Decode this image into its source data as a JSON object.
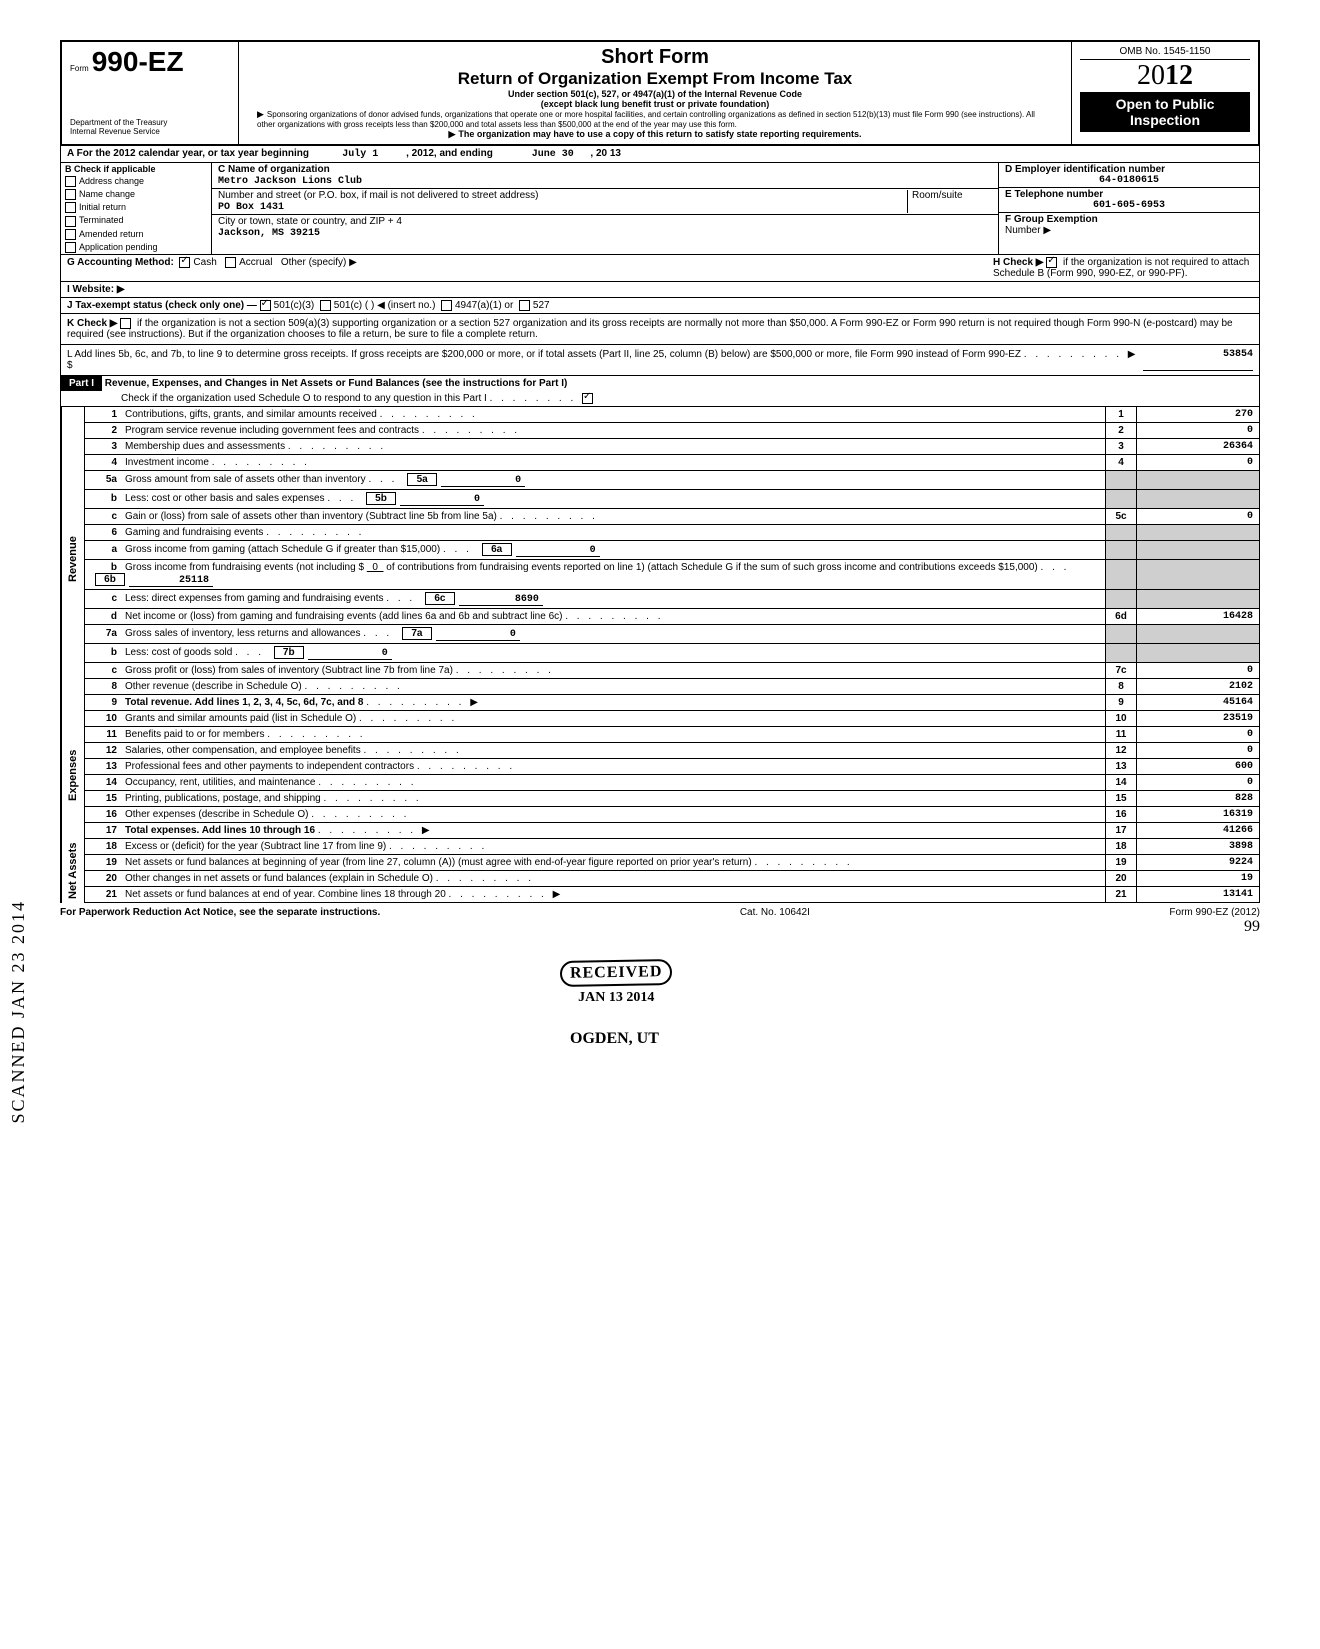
{
  "form": {
    "number_prefix": "Form",
    "number": "990-EZ",
    "dept1": "Department of the Treasury",
    "dept2": "Internal Revenue Service",
    "title1": "Short Form",
    "title2": "Return of Organization Exempt From Income Tax",
    "sub1": "Under section 501(c), 527, or 4947(a)(1) of the Internal Revenue Code",
    "sub2": "(except black lung benefit trust or private foundation)",
    "sub3": "Sponsoring organizations of donor advised funds, organizations that operate one or more hospital facilities, and certain controlling organizations as defined in section 512(b)(13) must file Form 990 (see instructions). All other organizations with gross receipts less than $200,000 and total assets less than $500,000 at the end of the year may use this form.",
    "sub4": "The organization may have to use a copy of this return to satisfy state reporting requirements.",
    "omb": "OMB No. 1545-1150",
    "year_prefix": "20",
    "year_bold": "12",
    "open1": "Open to Public",
    "open2": "Inspection"
  },
  "rowA": {
    "label": "A For the 2012 calendar year, or tax year beginning",
    "begin": "July 1",
    "mid": ", 2012, and ending",
    "end": "June 30",
    "tail": ", 20   13"
  },
  "sectionB": {
    "header": "B Check if applicable",
    "opts": [
      "Address change",
      "Name change",
      "Initial return",
      "Terminated",
      "Amended return",
      "Application pending"
    ],
    "c_label": "C  Name of organization",
    "org_name": "Metro Jackson Lions Club",
    "street_label": "Number and street (or P.O. box, if mail is not delivered to street address)",
    "room_label": "Room/suite",
    "street": "PO Box 1431",
    "city_label": "City or town, state or country, and ZIP + 4",
    "city": "Jackson, MS  39215",
    "d_label": "D Employer identification number",
    "ein": "64-0180615",
    "e_label": "E Telephone number",
    "phone": "601-605-6953",
    "f_label": "F Group Exemption",
    "f_label2": "Number ▶"
  },
  "rowG": {
    "label": "G  Accounting Method:",
    "cash": "Cash",
    "accrual": "Accrual",
    "other": "Other (specify) ▶",
    "h_label": "H Check ▶",
    "h_text": "if the organization is not required to attach Schedule B (Form 990, 990-EZ, or 990-PF)."
  },
  "rowI": {
    "label": "I   Website: ▶"
  },
  "rowJ": {
    "label": "J  Tax-exempt status (check only one) —",
    "o1": "501(c)(3)",
    "o2": "501(c) (        ) ◀ (insert no.)",
    "o3": "4947(a)(1) or",
    "o4": "527"
  },
  "rowK": {
    "label": "K Check ▶",
    "text": "if the organization is not a section 509(a)(3) supporting organization or a section 527 organization and its gross receipts are normally not more than $50,000. A Form 990-EZ or Form 990 return is not required though Form 990-N (e-postcard) may be required (see instructions). But if the organization chooses to file a return, be sure to file a complete return."
  },
  "rowL": {
    "text": "L  Add lines 5b, 6c, and 7b, to line 9 to determine gross receipts. If gross receipts are $200,000 or more, or if total assets (Part II, line 25, column (B) below) are $500,000 or more, file Form 990 instead of Form 990-EZ",
    "arrow": "▶  $",
    "value": "53854"
  },
  "part1": {
    "label": "Part I",
    "title": "Revenue, Expenses, and Changes in Net Assets or Fund Balances (see the instructions for Part I)",
    "check_line": "Check if the organization used Schedule O to respond to any question in this Part I"
  },
  "sides": {
    "revenue": "Revenue",
    "expenses": "Expenses",
    "netassets": "Net Assets"
  },
  "lines": {
    "l1": {
      "n": "1",
      "t": "Contributions, gifts, grants, and similar amounts received",
      "v": "270"
    },
    "l2": {
      "n": "2",
      "t": "Program service revenue including government fees and contracts",
      "v": "0"
    },
    "l3": {
      "n": "3",
      "t": "Membership dues and assessments",
      "v": "26364"
    },
    "l4": {
      "n": "4",
      "t": "Investment income",
      "v": "0"
    },
    "l5a": {
      "n": "5a",
      "t": "Gross amount from sale of assets other than inventory",
      "mn": "5a",
      "mv": "0"
    },
    "l5b": {
      "n": "b",
      "t": "Less: cost or other basis and sales expenses",
      "mn": "5b",
      "mv": "0"
    },
    "l5c": {
      "n": "c",
      "t": "Gain or (loss) from sale of assets other than inventory (Subtract line 5b from line 5a)",
      "num": "5c",
      "v": "0"
    },
    "l6": {
      "n": "6",
      "t": "Gaming and fundraising events"
    },
    "l6a": {
      "n": "a",
      "t": "Gross income from gaming (attach Schedule G if greater than $15,000)",
      "mn": "6a",
      "mv": "0"
    },
    "l6b": {
      "n": "b",
      "t": "Gross income from fundraising events (not including  $",
      "t2": "of contributions from fundraising events reported on line 1) (attach Schedule G if the sum of such gross income and contributions exceeds $15,000)",
      "mid": "0",
      "mn": "6b",
      "mv": "25118"
    },
    "l6c": {
      "n": "c",
      "t": "Less: direct expenses from gaming and fundraising events",
      "mn": "6c",
      "mv": "8690"
    },
    "l6d": {
      "n": "d",
      "t": "Net income or (loss) from gaming and fundraising events (add lines 6a and 6b and subtract line 6c)",
      "num": "6d",
      "v": "16428"
    },
    "l7a": {
      "n": "7a",
      "t": "Gross sales of inventory, less returns and allowances",
      "mn": "7a",
      "mv": "0"
    },
    "l7b": {
      "n": "b",
      "t": "Less: cost of goods sold",
      "mn": "7b",
      "mv": "0"
    },
    "l7c": {
      "n": "c",
      "t": "Gross profit or (loss) from sales of inventory (Subtract line 7b from line 7a)",
      "num": "7c",
      "v": "0"
    },
    "l8": {
      "n": "8",
      "t": "Other revenue (describe in Schedule O)",
      "v": "2102"
    },
    "l9": {
      "n": "9",
      "t": "Total revenue. Add lines 1, 2, 3, 4, 5c, 6d, 7c, and 8",
      "v": "45164",
      "bold": true,
      "arrow": true
    },
    "l10": {
      "n": "10",
      "t": "Grants and similar amounts paid (list in Schedule O)",
      "v": "23519"
    },
    "l11": {
      "n": "11",
      "t": "Benefits paid to or for members",
      "v": "0"
    },
    "l12": {
      "n": "12",
      "t": "Salaries, other compensation, and employee benefits",
      "v": "0"
    },
    "l13": {
      "n": "13",
      "t": "Professional fees and other payments to independent contractors",
      "v": "600"
    },
    "l14": {
      "n": "14",
      "t": "Occupancy, rent, utilities, and maintenance",
      "v": "0"
    },
    "l15": {
      "n": "15",
      "t": "Printing, publications, postage, and shipping",
      "v": "828"
    },
    "l16": {
      "n": "16",
      "t": "Other expenses (describe in Schedule O)",
      "v": "16319"
    },
    "l17": {
      "n": "17",
      "t": "Total expenses. Add lines 10 through 16",
      "v": "41266",
      "bold": true,
      "arrow": true
    },
    "l18": {
      "n": "18",
      "t": "Excess or (deficit) for the year (Subtract line 17 from line 9)",
      "v": "3898"
    },
    "l19": {
      "n": "19",
      "t": "Net assets or fund balances at beginning of year (from line 27, column (A)) (must agree with end-of-year figure reported on prior year's return)",
      "v": "9224"
    },
    "l20": {
      "n": "20",
      "t": "Other changes in net assets or fund balances (explain in Schedule O)",
      "v": "19"
    },
    "l21": {
      "n": "21",
      "t": "Net assets or fund balances at end of year. Combine lines 18 through 20",
      "v": "13141",
      "arrow": true
    }
  },
  "footer": {
    "left": "For Paperwork Reduction Act Notice, see the separate instructions.",
    "mid": "Cat. No. 10642I",
    "right": "Form 990-EZ (2012)"
  },
  "stamps": {
    "received": "RECEIVED",
    "date": "JAN 13 2014",
    "ogden": "OGDEN, UT",
    "scanned": "SCANNED JAN 23 2014",
    "pagenum": "99"
  }
}
